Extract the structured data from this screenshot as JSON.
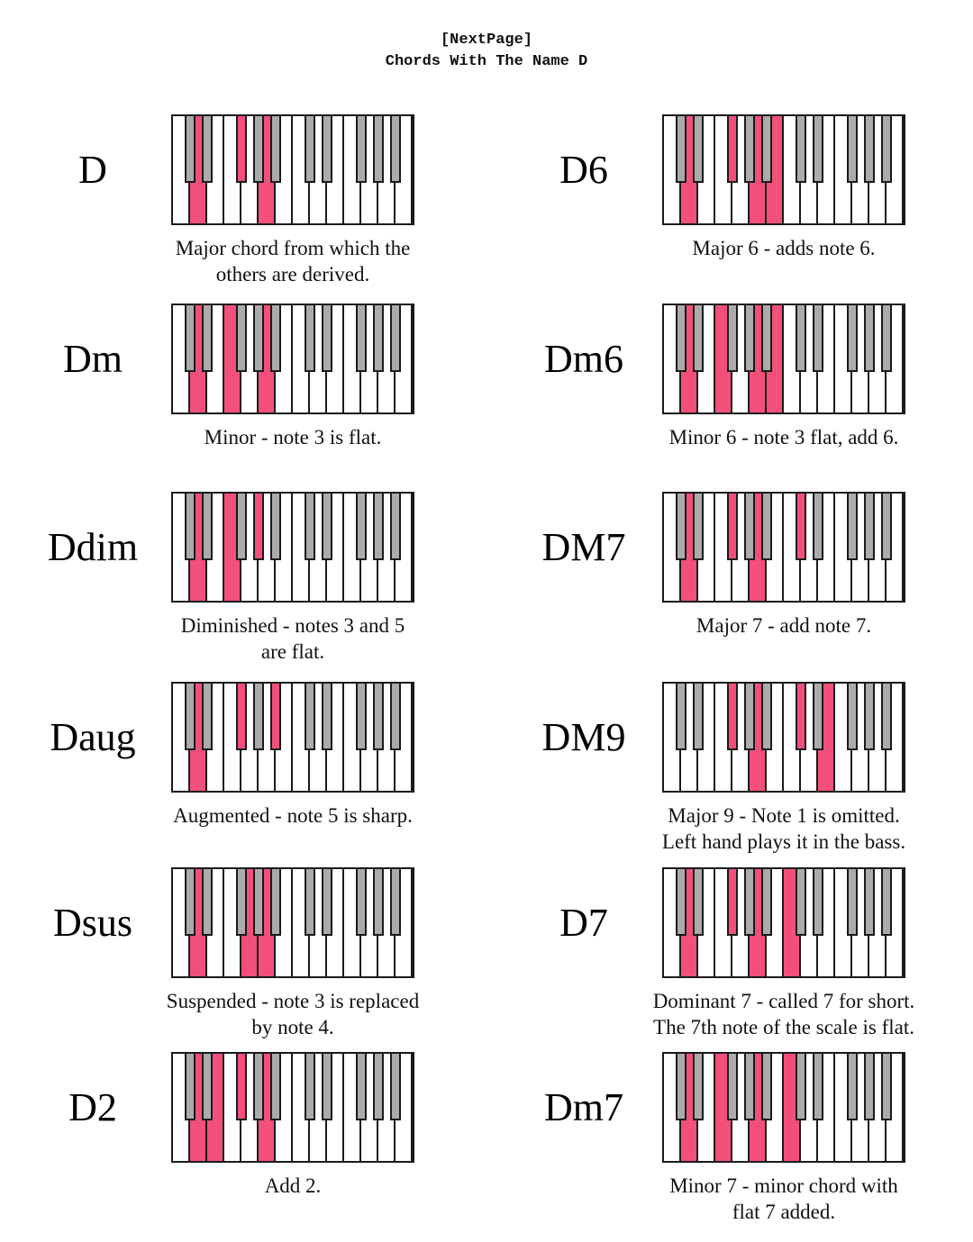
{
  "header": {
    "line1": "[NextPage]",
    "line2": "Chords With The Name D"
  },
  "colors": {
    "highlight": "#F2507B",
    "black_key_fill": "#ABABAB",
    "key_border": "#1A1A1A"
  },
  "keyboard": {
    "octaves": 2,
    "white_notes": [
      "C1",
      "D1",
      "E1",
      "F1",
      "G1",
      "A1",
      "B1",
      "C2",
      "D2",
      "E2",
      "F2",
      "G2",
      "A2",
      "B2"
    ],
    "black_keys": [
      {
        "note": "C#1",
        "boundary": 1
      },
      {
        "note": "D#1",
        "boundary": 2
      },
      {
        "note": "F#1",
        "boundary": 4
      },
      {
        "note": "G#1",
        "boundary": 5
      },
      {
        "note": "A#1",
        "boundary": 6
      },
      {
        "note": "C#2",
        "boundary": 8
      },
      {
        "note": "D#2",
        "boundary": 9
      },
      {
        "note": "F#2",
        "boundary": 11
      },
      {
        "note": "G#2",
        "boundary": 12
      },
      {
        "note": "A#2",
        "boundary": 13
      }
    ]
  },
  "chords": [
    {
      "name": "D",
      "caption": "Major chord from which the\nothers are derived.",
      "notes": "D F# A",
      "highlights": {
        "white": [
          "D1",
          "A1"
        ],
        "black": [
          "F#1"
        ]
      }
    },
    {
      "name": "Dm",
      "caption": "Minor - note 3 is flat.",
      "notes": "D F A",
      "highlights": {
        "white": [
          "D1",
          "F1",
          "A1"
        ],
        "black": []
      }
    },
    {
      "name": "Ddim",
      "caption": "Diminished - notes 3 and 5\nare flat.",
      "notes": "D F Ab",
      "highlights": {
        "white": [
          "D1",
          "F1"
        ],
        "black": [
          "G#1"
        ]
      }
    },
    {
      "name": "Daug",
      "caption": "Augmented - note 5 is sharp.",
      "notes": "D F# A#",
      "highlights": {
        "white": [
          "D1"
        ],
        "black": [
          "F#1",
          "A#1"
        ]
      }
    },
    {
      "name": "Dsus",
      "caption": "Suspended - note 3 is replaced\nby note 4.",
      "notes": "D G A",
      "highlights": {
        "white": [
          "D1",
          "G1",
          "A1"
        ],
        "black": []
      }
    },
    {
      "name": "D2",
      "caption": "Add 2.",
      "notes": "D E F# A",
      "highlights": {
        "white": [
          "D1",
          "E1",
          "A1"
        ],
        "black": [
          "F#1"
        ]
      }
    },
    {
      "name": "D6",
      "caption": "Major 6 - adds note 6.",
      "notes": "D F# A B",
      "highlights": {
        "white": [
          "D1",
          "A1",
          "B1"
        ],
        "black": [
          "F#1"
        ]
      }
    },
    {
      "name": "Dm6",
      "caption": "Minor 6 - note 3 flat, add 6.",
      "notes": "D F A B",
      "highlights": {
        "white": [
          "D1",
          "F1",
          "A1",
          "B1"
        ],
        "black": []
      }
    },
    {
      "name": "DM7",
      "caption": "Major 7 - add note 7.",
      "notes": "D F# A C#",
      "highlights": {
        "white": [
          "D1",
          "A1"
        ],
        "black": [
          "F#1",
          "C#2"
        ]
      }
    },
    {
      "name": "DM9",
      "caption": "Major 9 - Note 1 is omitted.\nLeft hand plays it in the bass.",
      "notes": "F# A C# E",
      "highlights": {
        "white": [
          "A1",
          "E2"
        ],
        "black": [
          "F#1",
          "C#2"
        ]
      }
    },
    {
      "name": "D7",
      "caption": "Dominant 7 - called 7 for short.\nThe 7th note of the scale is flat.",
      "notes": "D F# A C",
      "highlights": {
        "white": [
          "D1",
          "A1",
          "C2"
        ],
        "black": [
          "F#1"
        ]
      }
    },
    {
      "name": "Dm7",
      "caption": "Minor 7 - minor chord with\nflat 7 added.",
      "notes": "D F A C",
      "highlights": {
        "white": [
          "D1",
          "F1",
          "A1",
          "C2"
        ],
        "black": []
      }
    }
  ]
}
